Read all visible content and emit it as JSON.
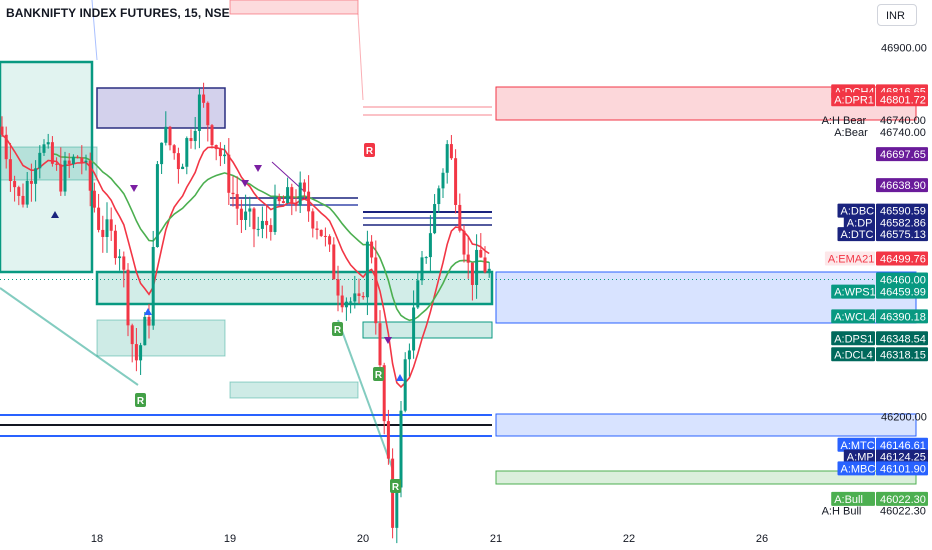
{
  "header": {
    "title": "BANKNIFTY INDEX FUTURES, 15, NSE",
    "currency": "INR"
  },
  "chart_data": {
    "type": "candlestick",
    "title": "BANKNIFTY INDEX FUTURES, 15, NSE",
    "y_range": [
      45985,
      46990
    ],
    "y_ticks": [
      "46900.00",
      "46200.00"
    ],
    "x_ticks": [
      "18",
      "19",
      "20",
      "21",
      "22",
      "26"
    ],
    "last_price": 46460.0,
    "colors": {
      "up": "#089981",
      "down": "#f23645",
      "ema": "#f23645",
      "green_line": "#4caf50",
      "level_red": "#f23645",
      "level_blue": "#2962ff",
      "zone_green": "#4caf50",
      "navy": "#0d1b7a"
    },
    "price_tags": [
      {
        "label": "A:DCH4",
        "value": "46816.65",
        "price": 46816.65,
        "style": "red-fill"
      },
      {
        "label": "A:DPR1",
        "value": "46801.72",
        "price": 46801.72,
        "style": "red-fill"
      },
      {
        "label": "A:H Bear",
        "value": "46740.00",
        "price": 46762,
        "style": "plain"
      },
      {
        "label": "A:Bear",
        "value": "46740.00",
        "price": 46740.0,
        "style": "plain"
      },
      {
        "label": "",
        "value": "46697.65",
        "price": 46697.65,
        "style": "purple-fill"
      },
      {
        "label": "",
        "value": "46638.90",
        "price": 46638.9,
        "style": "purple-fill"
      },
      {
        "label": "A:DBC",
        "value": "46590.59",
        "price": 46590.59,
        "style": "navy-fill"
      },
      {
        "label": "A:DP",
        "value": "46582.86",
        "price": 46568,
        "style": "navy-fill"
      },
      {
        "label": "A:DTC",
        "value": "46575.13",
        "price": 46546,
        "style": "navy-fill"
      },
      {
        "label": "A:EMA21",
        "value": "46499.76",
        "price": 46499.76,
        "style": "ema"
      },
      {
        "label": "",
        "value": "46460.00",
        "price": 46460.0,
        "style": "teal-fill"
      },
      {
        "label": "A:WPS1",
        "value": "46459.99",
        "price": 46437,
        "style": "teal-fill"
      },
      {
        "label": "A:WCL4",
        "value": "46390.18",
        "price": 46390.18,
        "style": "teal-fill"
      },
      {
        "label": "A:DPS1",
        "value": "46348.54",
        "price": 46348.54,
        "style": "darkteal-fill"
      },
      {
        "label": "A:DCL4",
        "value": "46318.15",
        "price": 46318.15,
        "style": "darkteal-fill"
      },
      {
        "label": "A:MTC",
        "value": "46146.61",
        "price": 46146.61,
        "style": "blue-fill"
      },
      {
        "label": "A:MP",
        "value": "46124.25",
        "price": 46124.25,
        "style": "navy-fill"
      },
      {
        "label": "A:MBC",
        "value": "46101.90",
        "price": 46101.9,
        "style": "blue-fill"
      },
      {
        "label": "A:Bull",
        "value": "46022.30",
        "price": 46044,
        "style": "green-fill"
      },
      {
        "label": "A:H Bull",
        "value": "46022.30",
        "price": 46022.3,
        "style": "plain"
      }
    ],
    "markers": {
      "r_label": "R"
    }
  }
}
